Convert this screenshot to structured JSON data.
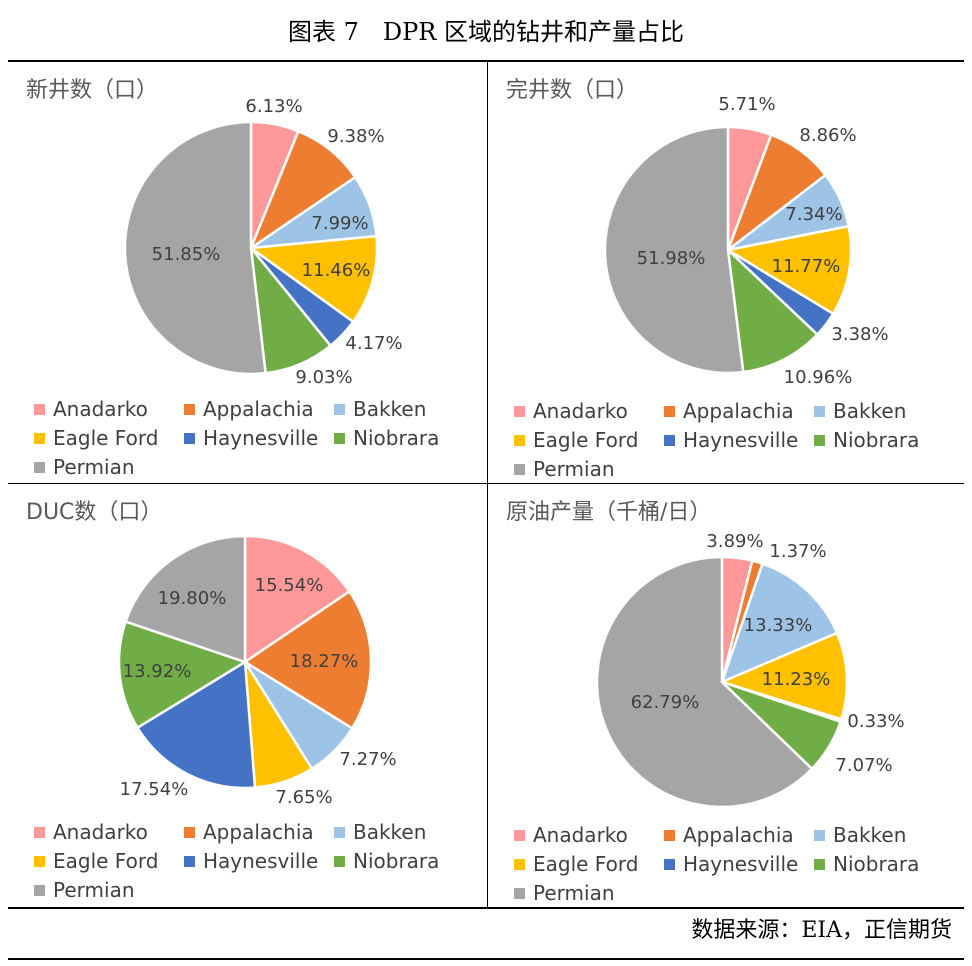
{
  "figure_title": "图表 7　DPR 区域的钻井和产量占比",
  "source": "数据来源：EIA，正信期货",
  "legend": [
    {
      "label": "Anadarko",
      "color": "#FF9999"
    },
    {
      "label": "Appalachia",
      "color": "#ED7D31"
    },
    {
      "label": "Bakken",
      "color": "#9DC3E6"
    },
    {
      "label": "Eagle Ford",
      "color": "#FFC000"
    },
    {
      "label": "Haynesville",
      "color": "#4472C4"
    },
    {
      "label": "Niobrara",
      "color": "#70AD47"
    },
    {
      "label": "Permian",
      "color": "#A5A5A5"
    }
  ],
  "chart_data": [
    {
      "type": "pie",
      "title": "新井数（口）",
      "categories": [
        "Anadarko",
        "Appalachia",
        "Bakken",
        "Eagle Ford",
        "Haynesville",
        "Niobrara",
        "Permian"
      ],
      "values": [
        6.13,
        9.38,
        7.99,
        11.46,
        4.17,
        9.03,
        51.85
      ],
      "labels": [
        "6.13%",
        "9.38%",
        "7.99%",
        "11.46%",
        "4.17%",
        "9.03%",
        "51.85%"
      ]
    },
    {
      "type": "pie",
      "title": "完井数（口）",
      "categories": [
        "Anadarko",
        "Appalachia",
        "Bakken",
        "Eagle Ford",
        "Haynesville",
        "Niobrara",
        "Permian"
      ],
      "values": [
        5.71,
        8.86,
        7.34,
        11.77,
        3.38,
        10.96,
        51.98
      ],
      "labels": [
        "5.71%",
        "8.86%",
        "7.34%",
        "11.77%",
        "3.38%",
        "10.96%",
        "51.98%"
      ]
    },
    {
      "type": "pie",
      "title": "DUC数（口）",
      "categories": [
        "Anadarko",
        "Appalachia",
        "Bakken",
        "Eagle Ford",
        "Haynesville",
        "Niobrara",
        "Permian"
      ],
      "values": [
        15.54,
        18.27,
        7.27,
        7.65,
        17.54,
        13.92,
        19.8
      ],
      "labels": [
        "15.54%",
        "18.27%",
        "7.27%",
        "7.65%",
        "17.54%",
        "13.92%",
        "19.80%"
      ]
    },
    {
      "type": "pie",
      "title": "原油产量（千桶/日）",
      "categories": [
        "Anadarko",
        "Appalachia",
        "Bakken",
        "Eagle Ford",
        "Haynesville",
        "Niobrara",
        "Permian"
      ],
      "values": [
        3.89,
        1.37,
        13.33,
        11.23,
        0.33,
        7.07,
        62.79
      ],
      "labels": [
        "3.89%",
        "1.37%",
        "13.33%",
        "11.23%",
        "0.33%",
        "7.07%",
        "62.79%"
      ]
    }
  ]
}
